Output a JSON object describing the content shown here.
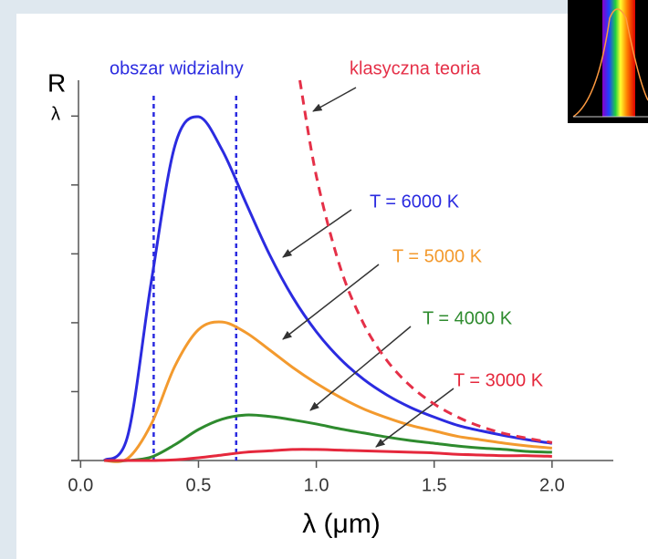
{
  "chart_data": {
    "type": "line",
    "y_label": "R",
    "y_label_sub": "λ",
    "x_label": "λ (μm)",
    "xlim": [
      -0.04,
      2.26
    ],
    "ylim": [
      0,
      5.52
    ],
    "xticks": [
      {
        "value": 0,
        "label": "0.0"
      },
      0.5,
      {
        "value": 1,
        "label": "1.0"
      },
      1.5,
      {
        "value": 2,
        "label": "2.0"
      }
    ],
    "yticks": [
      0,
      1,
      2,
      3,
      4,
      5
    ],
    "x": [
      0.1,
      0.2,
      0.3,
      0.4,
      0.5,
      0.6,
      0.7,
      0.8,
      0.9,
      1.0,
      1.1,
      1.2,
      1.3,
      1.4,
      1.5,
      1.6,
      1.7,
      1.8,
      1.9,
      2.0
    ],
    "series": [
      {
        "name": "T = 6000 K",
        "color": "#2b2be0",
        "values": [
          0,
          0.36,
          2.6,
          4.57,
          4.99,
          4.51,
          3.75,
          3.0,
          2.37,
          1.87,
          1.48,
          1.18,
          0.95,
          0.77,
          0.63,
          0.51,
          0.43,
          0.36,
          0.3,
          0.25
        ]
      },
      {
        "name": "T = 5000 K",
        "color": "#f39a2e",
        "values": [
          0,
          0.03,
          0.53,
          1.37,
          1.9,
          2.01,
          1.86,
          1.61,
          1.35,
          1.12,
          0.92,
          0.75,
          0.62,
          0.51,
          0.43,
          0.35,
          0.3,
          0.25,
          0.21,
          0.18
        ]
      },
      {
        "name": "T = 4000 K",
        "color": "#2e8b2e",
        "values": [
          0,
          0,
          0.05,
          0.23,
          0.45,
          0.6,
          0.66,
          0.64,
          0.59,
          0.53,
          0.46,
          0.4,
          0.34,
          0.29,
          0.25,
          0.21,
          0.18,
          0.16,
          0.13,
          0.12
        ]
      },
      {
        "name": "T = 3000 K",
        "color": "#e5283c",
        "values": [
          0,
          0,
          0,
          0.01,
          0.04,
          0.08,
          0.12,
          0.14,
          0.16,
          0.16,
          0.15,
          0.14,
          0.13,
          0.12,
          0.11,
          0.09,
          0.08,
          0.07,
          0.07,
          0.06
        ]
      },
      {
        "name": "klasyczna teoria",
        "color": "#e53048",
        "dashed": true,
        "x": [
          0.93,
          1.0,
          1.1,
          1.2,
          1.3,
          1.4,
          1.5,
          1.6,
          1.7,
          1.8,
          1.9,
          2.0
        ],
        "values": [
          5.52,
          4.13,
          2.82,
          1.99,
          1.45,
          1.08,
          0.82,
          0.63,
          0.49,
          0.39,
          0.32,
          0.26
        ]
      }
    ],
    "visible_region": {
      "label": "obszar widzialny",
      "x": [
        0.31,
        0.66
      ],
      "color": "#2b2be0"
    }
  }
}
